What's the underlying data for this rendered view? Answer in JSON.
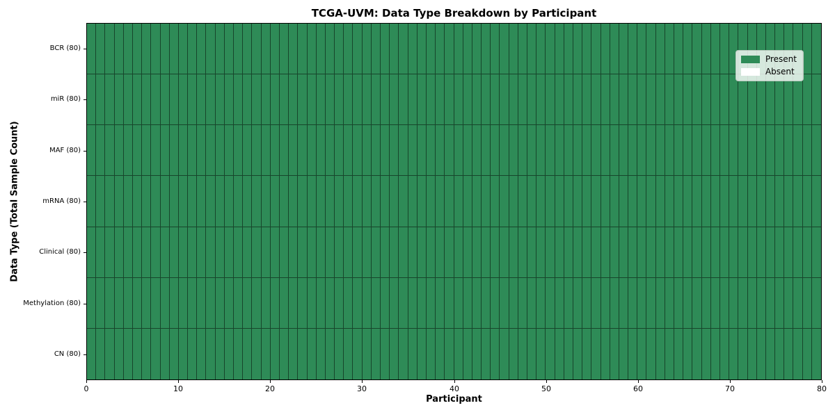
{
  "chart_data": {
    "type": "heatmap",
    "title": "TCGA-UVM: Data Type Breakdown by Participant",
    "xlabel": "Participant",
    "ylabel": "Data Type (Total Sample Count)",
    "xlim": [
      0,
      80
    ],
    "x_ticks": [
      0,
      10,
      20,
      30,
      40,
      50,
      60,
      70,
      80
    ],
    "n_participants": 80,
    "rows": [
      {
        "label": "BCR (80)",
        "data_type": "BCR",
        "total_sample_count": 80,
        "present_count": 80,
        "absent_count": 0
      },
      {
        "label": "miR (80)",
        "data_type": "miR",
        "total_sample_count": 80,
        "present_count": 80,
        "absent_count": 0
      },
      {
        "label": "MAF (80)",
        "data_type": "MAF",
        "total_sample_count": 80,
        "present_count": 80,
        "absent_count": 0
      },
      {
        "label": "mRNA (80)",
        "data_type": "mRNA",
        "total_sample_count": 80,
        "present_count": 80,
        "absent_count": 0
      },
      {
        "label": "Clinical (80)",
        "data_type": "Clinical",
        "total_sample_count": 80,
        "present_count": 80,
        "absent_count": 0
      },
      {
        "label": "Methylation (80)",
        "data_type": "Methylation",
        "total_sample_count": 80,
        "present_count": 80,
        "absent_count": 0
      },
      {
        "label": "CN (80)",
        "data_type": "CN",
        "total_sample_count": 80,
        "present_count": 80,
        "absent_count": 0
      }
    ],
    "cells": {
      "n_rows": 7,
      "n_cols": 80,
      "encoding": "all-present",
      "description": "Every cell (7 data types x 80 participants) has state Present"
    },
    "legend": {
      "position": "upper right",
      "entries": [
        {
          "label": "Present",
          "state": "present",
          "color": "#2e8b57"
        },
        {
          "label": "Absent",
          "state": "absent",
          "color": "#ffffff"
        }
      ]
    },
    "colors": {
      "present": "#2e8b57",
      "absent": "#ffffff",
      "cell_border": "rgba(0,0,0,0.5)",
      "spine": "#000000",
      "background": "#ffffff"
    }
  }
}
